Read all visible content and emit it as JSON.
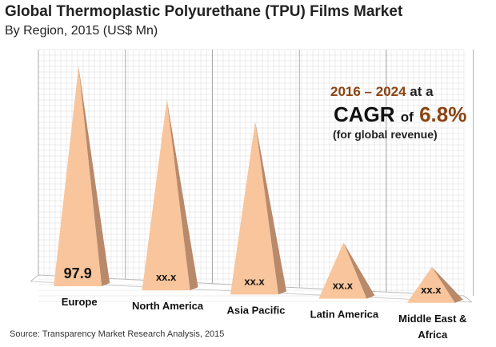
{
  "chart_data": {
    "type": "bar",
    "bar_shape": "3d-pyramid",
    "title": "Global Thermoplastic Polyurethane (TPU) Films Market",
    "subtitle": "By Region, 2015 (US$ Mn)",
    "categories": [
      "Europe",
      "North America",
      "Asia Pacific",
      "Latin America",
      "Middle East & Africa"
    ],
    "values": [
      97.9,
      85,
      77,
      25,
      16
    ],
    "data_labels": [
      "97.9",
      "xx.x",
      "xx.x",
      "xx.x",
      "xx.x"
    ],
    "ylim": [
      0,
      110
    ],
    "grid": true,
    "colors": {
      "front": "#f9c59c",
      "side": "#b8896a",
      "grid": "#d9d9d9"
    }
  },
  "annotation": {
    "period": "2016 – 2024",
    "at_a": "at a",
    "cagr": "CAGR",
    "of": "of",
    "rate": "6.8%",
    "note": "(for global revenue)"
  },
  "source": "Source: Transparency Market Research Analysis, 2015"
}
